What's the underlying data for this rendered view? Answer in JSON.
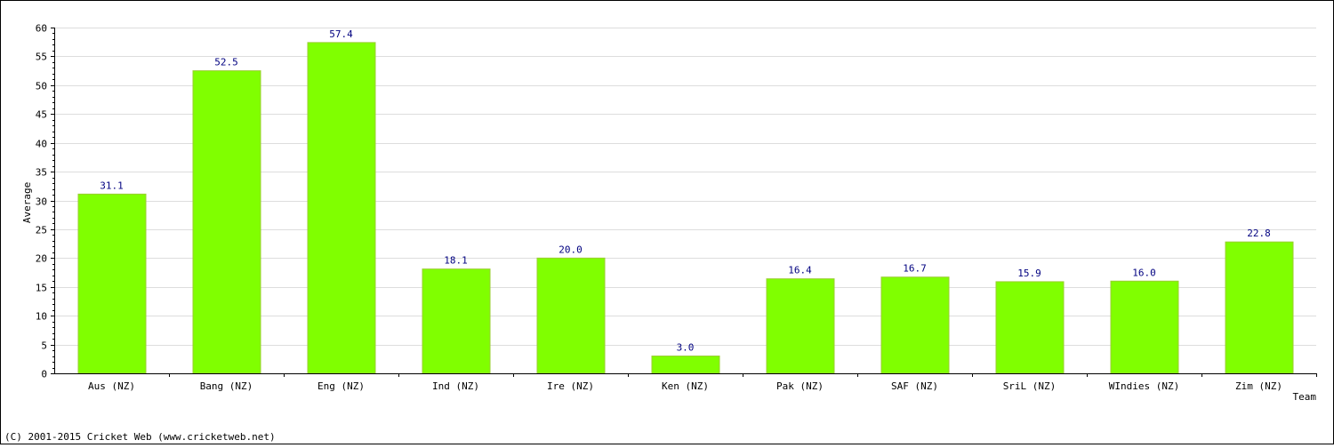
{
  "chart_data": {
    "type": "bar",
    "xlabel": "Team",
    "ylabel": "Average",
    "categories": [
      "Aus (NZ)",
      "Bang (NZ)",
      "Eng (NZ)",
      "Ind (NZ)",
      "Ire (NZ)",
      "Ken (NZ)",
      "Pak (NZ)",
      "SAF (NZ)",
      "SriL (NZ)",
      "WIndies (NZ)",
      "Zim (NZ)"
    ],
    "values": [
      31.1,
      52.5,
      57.4,
      18.1,
      20.0,
      3.0,
      16.4,
      16.7,
      15.9,
      16.0,
      22.8
    ],
    "value_labels": [
      "31.1",
      "52.5",
      "57.4",
      "18.1",
      "20.0",
      "3.0",
      "16.4",
      "16.7",
      "15.9",
      "16.0",
      "22.8"
    ],
    "ylim": [
      0,
      60
    ],
    "yticks": [
      0,
      5,
      10,
      15,
      20,
      25,
      30,
      35,
      40,
      45,
      50,
      55,
      60
    ],
    "ytick_labels": [
      "0",
      "5",
      "10",
      "15",
      "20",
      "25",
      "30",
      "35",
      "40",
      "45",
      "50",
      "55",
      "60"
    ],
    "grid": true,
    "colors": {
      "bar": "#80ff00",
      "bar_edge": "#9acd32",
      "value_label": "#000080",
      "grid": "#dddddd"
    }
  },
  "footer": "(C) 2001-2015 Cricket Web (www.cricketweb.net)"
}
